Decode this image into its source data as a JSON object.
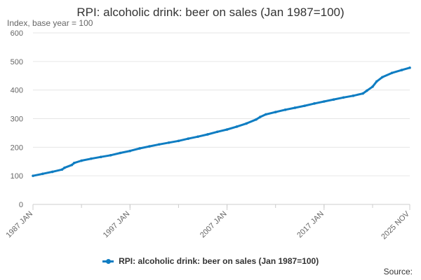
{
  "chart_data": {
    "type": "line",
    "title": "RPI: alcoholic drink: beer on sales (Jan 1987=100)",
    "ylabel": "Index, base year = 100",
    "xlabel": "",
    "ylim": [
      0,
      600
    ],
    "y_ticks": [
      0,
      100,
      200,
      300,
      400,
      500,
      600
    ],
    "x_range": [
      "1987-01",
      "2025-11"
    ],
    "x_tick_labels": [
      "1987 JAN",
      "1997 JAN",
      "2007 JAN",
      "2017 JAN",
      "2025 NOV"
    ],
    "x_tick_positions": [
      "1987-01",
      "1997-01",
      "2007-01",
      "2017-01",
      "2025-11"
    ],
    "grid": true,
    "legend_position": "bottom",
    "series": [
      {
        "name": "RPI: alcoholic drink: beer on sales (Jan 1987=100)",
        "color": "#0f7dc2",
        "points": [
          [
            "1987-01",
            100
          ],
          [
            "1988-01",
            107
          ],
          [
            "1989-01",
            114
          ],
          [
            "1990-01",
            122
          ],
          [
            "1990-04",
            128
          ],
          [
            "1991-01",
            138
          ],
          [
            "1991-04",
            145
          ],
          [
            "1992-01",
            153
          ],
          [
            "1993-01",
            160
          ],
          [
            "1994-01",
            166
          ],
          [
            "1995-01",
            172
          ],
          [
            "1996-01",
            180
          ],
          [
            "1997-01",
            187
          ],
          [
            "1998-01",
            196
          ],
          [
            "1999-01",
            203
          ],
          [
            "2000-01",
            210
          ],
          [
            "2001-01",
            216
          ],
          [
            "2002-01",
            222
          ],
          [
            "2003-01",
            230
          ],
          [
            "2004-01",
            237
          ],
          [
            "2005-01",
            245
          ],
          [
            "2006-01",
            254
          ],
          [
            "2007-01",
            262
          ],
          [
            "2008-01",
            272
          ],
          [
            "2009-01",
            283
          ],
          [
            "2010-01",
            297
          ],
          [
            "2010-06",
            306
          ],
          [
            "2011-01",
            315
          ],
          [
            "2012-01",
            323
          ],
          [
            "2013-01",
            331
          ],
          [
            "2014-01",
            338
          ],
          [
            "2015-01",
            345
          ],
          [
            "2016-01",
            353
          ],
          [
            "2017-01",
            360
          ],
          [
            "2018-01",
            367
          ],
          [
            "2019-01",
            374
          ],
          [
            "2020-01",
            380
          ],
          [
            "2021-01",
            388
          ],
          [
            "2021-06",
            398
          ],
          [
            "2022-01",
            412
          ],
          [
            "2022-06",
            430
          ],
          [
            "2023-01",
            445
          ],
          [
            "2024-01",
            460
          ],
          [
            "2025-01",
            470
          ],
          [
            "2025-11",
            478
          ]
        ]
      }
    ]
  },
  "legend": {
    "label": "RPI: alcoholic drink: beer on sales (Jan 1987=100)"
  },
  "footer": {
    "source": "Source:"
  }
}
